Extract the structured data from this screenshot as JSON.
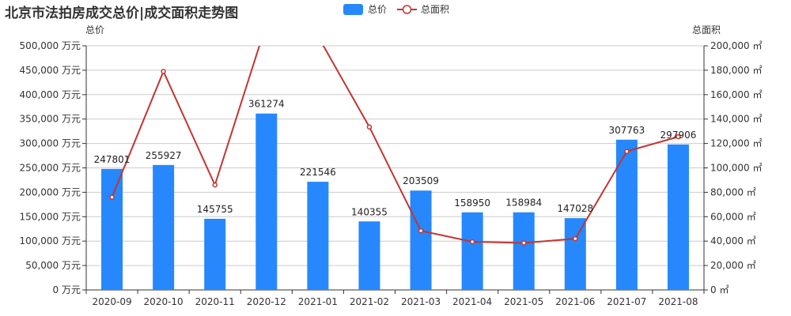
{
  "chart_data": {
    "type": "bar",
    "title": "北京市法拍房成交总价|成交面积走势图",
    "categories": [
      "2020-09",
      "2020-10",
      "2020-11",
      "2020-12",
      "2021-01",
      "2021-02",
      "2021-03",
      "2021-04",
      "2021-05",
      "2021-06",
      "2021-07",
      "2021-08"
    ],
    "series": [
      {
        "name": "总价",
        "type": "bar",
        "axis": "left",
        "values": [
          247801,
          255927,
          145755,
          361274,
          221546,
          140355,
          203509,
          158950,
          158984,
          147028,
          307763,
          297906
        ],
        "labels": [
          "247801",
          "255927",
          "145755",
          "361274",
          "221546",
          "140355",
          "203509",
          "158950",
          "158984",
          "147028",
          "307763",
          "297906"
        ]
      },
      {
        "name": "总面积",
        "type": "line",
        "axis": "right",
        "values": [
          76000,
          179000,
          86000,
          218000,
          208000,
          133500,
          48500,
          39500,
          38500,
          42000,
          113500,
          125500
        ]
      }
    ],
    "y_left": {
      "name": "总价",
      "ylim": [
        0,
        500000
      ],
      "ticks": [
        "0 万元",
        "50,000 万元",
        "100,000 万元",
        "150,000 万元",
        "200,000 万元",
        "250,000 万元",
        "300,000 万元",
        "350,000 万元",
        "400,000 万元",
        "450,000 万元",
        "500,000 万元"
      ]
    },
    "y_right": {
      "name": "总面积",
      "ylim": [
        0,
        200000
      ],
      "ticks": [
        "0 ㎡",
        "20,000 ㎡",
        "40,000 ㎡",
        "60,000 ㎡",
        "80,000 ㎡",
        "100,000 ㎡",
        "120,000 ㎡",
        "140,000 ㎡",
        "160,000 ㎡",
        "180,000 ㎡",
        "200,000 ㎡"
      ]
    },
    "grid": true,
    "legend_position": "top-center",
    "colors": {
      "bar": "#2688fc",
      "line": "#c23531",
      "grid": "#cccccc",
      "axis": "#333333"
    }
  }
}
